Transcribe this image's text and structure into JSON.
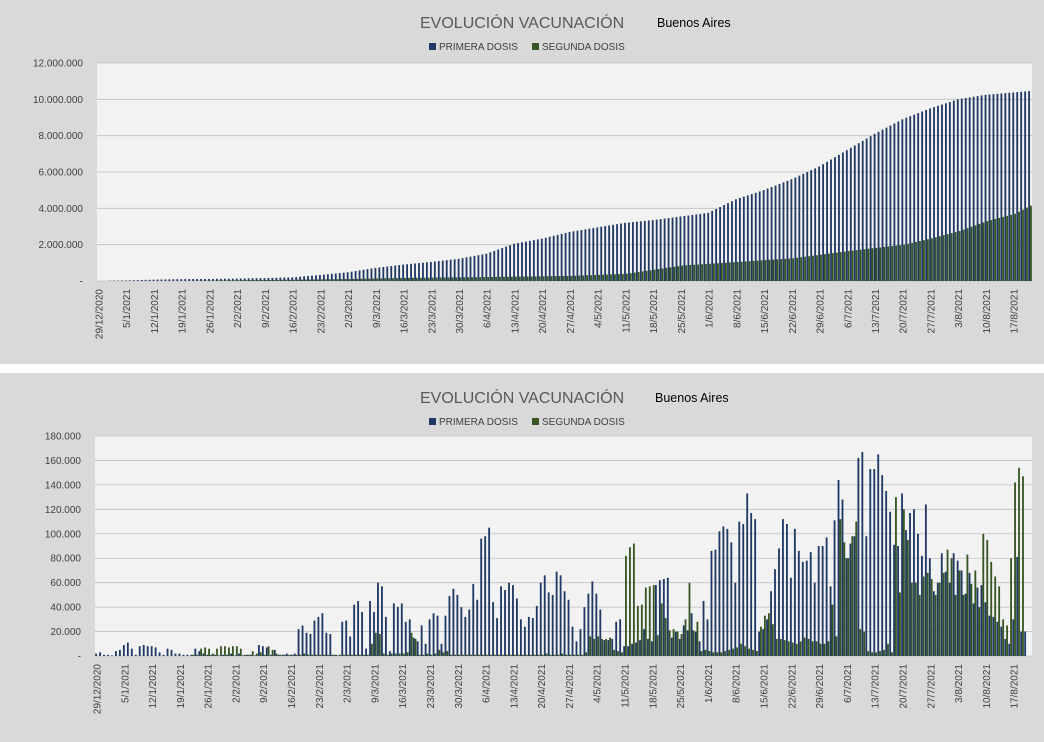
{
  "colors": {
    "primera": "#1f3864",
    "segunda": "#375623",
    "panel_bg": "#d9d9d9",
    "plot_bg": "#f2f2f2",
    "grid": "#bfbfbf"
  },
  "chart_data": [
    {
      "type": "bar",
      "title": "EVOLUCIÓN VACUNACIÓN",
      "subtitle": "Buenos Aires",
      "legend_position": "top-center",
      "grid": true,
      "ylim": [
        0,
        12000000
      ],
      "yticks": [
        0,
        2000000,
        4000000,
        6000000,
        8000000,
        10000000,
        12000000
      ],
      "ytick_labels": [
        "-",
        "2.000.000",
        "4.000.000",
        "6.000.000",
        "8.000.000",
        "10.000.000",
        "12.000.000"
      ],
      "x_start": "2020-12-29",
      "x_end": "2021-08-21",
      "xtick_labels": [
        "29/12/2020",
        "5/1/2021",
        "12/1/2021",
        "19/1/2021",
        "26/1/2021",
        "2/2/2021",
        "9/2/2021",
        "16/2/2021",
        "23/2/2021",
        "2/3/2021",
        "9/3/2021",
        "16/3/2021",
        "23/3/2021",
        "30/3/2021",
        "6/4/2021",
        "13/4/2021",
        "20/4/2021",
        "27/4/2021",
        "4/5/2021",
        "11/5/2021",
        "18/5/2021",
        "25/5/2021",
        "1/6/2021",
        "8/6/2021",
        "15/6/2021",
        "22/6/2021",
        "29/6/2021",
        "6/7/2021",
        "13/7/2021",
        "20/7/2021",
        "27/7/2021",
        "3/8/2021",
        "10/8/2021",
        "17/8/2021"
      ],
      "series": [
        {
          "name": "PRIMERA DOSIS",
          "color": "#1f3864",
          "anchors": [
            [
              "2020-12-29",
              3000
            ],
            [
              "2021-01-05",
              30000
            ],
            [
              "2021-01-12",
              75000
            ],
            [
              "2021-01-19",
              105000
            ],
            [
              "2021-01-26",
              115000
            ],
            [
              "2021-02-02",
              135000
            ],
            [
              "2021-02-09",
              160000
            ],
            [
              "2021-02-16",
              200000
            ],
            [
              "2021-02-23",
              330000
            ],
            [
              "2021-03-02",
              480000
            ],
            [
              "2021-03-09",
              720000
            ],
            [
              "2021-03-16",
              900000
            ],
            [
              "2021-03-23",
              1050000
            ],
            [
              "2021-03-30",
              1220000
            ],
            [
              "2021-04-06",
              1500000
            ],
            [
              "2021-04-13",
              2050000
            ],
            [
              "2021-04-20",
              2330000
            ],
            [
              "2021-04-27",
              2700000
            ],
            [
              "2021-05-04",
              2950000
            ],
            [
              "2021-05-11",
              3200000
            ],
            [
              "2021-05-18",
              3350000
            ],
            [
              "2021-05-25",
              3550000
            ],
            [
              "2021-06-01",
              3750000
            ],
            [
              "2021-06-08",
              4500000
            ],
            [
              "2021-06-15",
              5000000
            ],
            [
              "2021-06-22",
              5600000
            ],
            [
              "2021-06-29",
              6300000
            ],
            [
              "2021-07-06",
              7200000
            ],
            [
              "2021-07-13",
              8100000
            ],
            [
              "2021-07-20",
              8900000
            ],
            [
              "2021-07-27",
              9500000
            ],
            [
              "2021-08-03",
              10000000
            ],
            [
              "2021-08-10",
              10250000
            ],
            [
              "2021-08-17",
              10380000
            ],
            [
              "2021-08-21",
              10450000
            ]
          ]
        },
        {
          "name": "SEGUNDA DOSIS",
          "color": "#375623",
          "anchors": [
            [
              "2020-12-29",
              0
            ],
            [
              "2021-01-19",
              5000
            ],
            [
              "2021-02-02",
              40000
            ],
            [
              "2021-02-16",
              70000
            ],
            [
              "2021-03-02",
              110000
            ],
            [
              "2021-03-16",
              170000
            ],
            [
              "2021-04-06",
              220000
            ],
            [
              "2021-04-27",
              280000
            ],
            [
              "2021-05-11",
              400000
            ],
            [
              "2021-05-25",
              850000
            ],
            [
              "2021-06-08",
              1050000
            ],
            [
              "2021-06-22",
              1250000
            ],
            [
              "2021-07-06",
              1650000
            ],
            [
              "2021-07-20",
              2000000
            ],
            [
              "2021-07-27",
              2350000
            ],
            [
              "2021-08-03",
              2750000
            ],
            [
              "2021-08-10",
              3300000
            ],
            [
              "2021-08-17",
              3700000
            ],
            [
              "2021-08-21",
              4150000
            ]
          ]
        }
      ]
    },
    {
      "type": "bar",
      "title": "EVOLUCIÓN VACUNACIÓN",
      "subtitle": "Buenos Aires",
      "legend_position": "top-center",
      "grid": true,
      "ylim": [
        0,
        180000
      ],
      "yticks": [
        0,
        20000,
        40000,
        60000,
        80000,
        100000,
        120000,
        140000,
        160000,
        180000
      ],
      "ytick_labels": [
        "-",
        "20.000",
        "40.000",
        "60.000",
        "80.000",
        "100.000",
        "120.000",
        "140.000",
        "160.000",
        "180.000"
      ],
      "x_start": "2020-12-29",
      "x_end": "2021-08-21",
      "xtick_labels": [
        "29/12/2020",
        "5/1/2021",
        "12/1/2021",
        "19/1/2021",
        "26/1/2021",
        "2/2/2021",
        "9/2/2021",
        "16/2/2021",
        "23/2/2021",
        "2/3/2021",
        "9/3/2021",
        "16/3/2021",
        "23/3/2021",
        "30/3/2021",
        "6/4/2021",
        "13/4/2021",
        "20/4/2021",
        "27/4/2021",
        "4/5/2021",
        "11/5/2021",
        "18/5/2021",
        "25/5/2021",
        "1/6/2021",
        "8/6/2021",
        "15/6/2021",
        "22/6/2021",
        "29/6/2021",
        "6/7/2021",
        "13/7/2021",
        "20/7/2021",
        "27/7/2021",
        "3/8/2021",
        "10/8/2021",
        "17/8/2021"
      ],
      "series": [
        {
          "name": "PRIMERA DOSIS",
          "color": "#1f3864",
          "values": [
            2000,
            3000,
            1000,
            1000,
            500,
            4000,
            5000,
            9000,
            11000,
            6000,
            1000,
            8000,
            9000,
            8000,
            8000,
            7000,
            3000,
            1000,
            6000,
            5000,
            2000,
            2000,
            1000,
            1000,
            1000,
            6000,
            4000,
            2000,
            1000,
            1000,
            1000,
            500,
            1000,
            1000,
            2000,
            500,
            2000,
            500,
            1000,
            1000,
            500,
            9000,
            8000,
            7000,
            1000,
            5000,
            1000,
            1000,
            2000,
            1000,
            2000,
            22000,
            25000,
            19000,
            18000,
            29000,
            32000,
            35000,
            19000,
            18000,
            1000,
            500,
            28000,
            29000,
            16000,
            42000,
            45000,
            36000,
            6000,
            45000,
            36000,
            60000,
            57000,
            32000,
            4000,
            43000,
            40000,
            43000,
            28000,
            30000,
            15000,
            12000,
            25000,
            10000,
            30000,
            35000,
            33000,
            10000,
            33000,
            49000,
            55000,
            50000,
            40000,
            32000,
            38000,
            59000,
            46000,
            96000,
            98000,
            105000,
            44000,
            31000,
            57000,
            54000,
            60000,
            58000,
            47000,
            30000,
            24000,
            32000,
            31000,
            41000,
            60000,
            66000,
            52000,
            50000,
            69000,
            66000,
            53000,
            46000,
            24000,
            12000,
            22000,
            40000,
            51000,
            61000,
            51000,
            38000,
            13000,
            13000,
            14000,
            28000,
            30000,
            8000,
            8000,
            10000,
            11000,
            13000,
            22000,
            14000,
            12000,
            58000,
            62000,
            63000,
            64000,
            15000,
            20000,
            14000,
            25000,
            21000,
            35000,
            20000,
            12000,
            45000,
            30000,
            86000,
            87000,
            102000,
            106000,
            104000,
            93000,
            60000,
            110000,
            108000,
            133000,
            117000,
            112000,
            20000,
            22000,
            30000,
            53000,
            71000,
            88000,
            112000,
            108000,
            64000,
            104000,
            86000,
            77000,
            78000,
            85000,
            60000,
            90000,
            90000,
            97000,
            57000,
            111000,
            144000,
            128000,
            80000,
            92000,
            98000,
            162000,
            167000,
            98000,
            153000,
            153000,
            165000,
            148000,
            135000,
            118000,
            91000,
            90000,
            133000,
            103000,
            117000,
            120000,
            100000,
            82000,
            124000,
            80000,
            53000,
            60000,
            84000,
            69000,
            60000,
            84000,
            78000,
            70000,
            51000,
            68000,
            43000,
            56000,
            58000,
            44000,
            33000,
            32000,
            28000,
            24000,
            14000,
            10000,
            30000,
            81000,
            20000,
            20000
          ]
        },
        {
          "name": "SEGUNDA DOSIS",
          "color": "#375623",
          "values": [
            0,
            0,
            0,
            0,
            0,
            0,
            0,
            0,
            0,
            0,
            0,
            0,
            0,
            0,
            0,
            0,
            0,
            0,
            0,
            0,
            0,
            0,
            0,
            0,
            1000,
            1000,
            6000,
            7000,
            6000,
            2000,
            6000,
            8000,
            8000,
            7000,
            8000,
            8000,
            6000,
            1000,
            1000,
            4000,
            2000,
            3000,
            1000,
            8000,
            5000,
            2000,
            1000,
            1000,
            1000,
            1000,
            1000,
            1000,
            2000,
            1000,
            1000,
            1000,
            1000,
            1000,
            1000,
            1000,
            1000,
            1000,
            1000,
            1000,
            1000,
            1000,
            1000,
            1000,
            1000,
            10000,
            19000,
            18000,
            2000,
            1000,
            2000,
            2000,
            2000,
            2000,
            3000,
            19000,
            14000,
            1000,
            1000,
            2000,
            1000,
            2000,
            5000,
            3000,
            4000,
            1000,
            1000,
            1000,
            1000,
            1000,
            1000,
            1000,
            1000,
            1000,
            1000,
            1000,
            1000,
            1000,
            1000,
            1000,
            1000,
            1000,
            1000,
            1000,
            1000,
            1000,
            1000,
            1000,
            1000,
            2000,
            1000,
            1000,
            1000,
            2000,
            1000,
            1000,
            1000,
            1000,
            1000,
            3000,
            16000,
            14000,
            16000,
            14000,
            14000,
            15000,
            5000,
            4000,
            3000,
            82000,
            89000,
            92000,
            41000,
            42000,
            56000,
            57000,
            58000,
            17000,
            43000,
            31000,
            21000,
            22000,
            20000,
            18000,
            30000,
            60000,
            21000,
            28000,
            4000,
            5000,
            4000,
            3000,
            3000,
            3000,
            4000,
            5000,
            6000,
            7000,
            10000,
            8000,
            6000,
            5000,
            4000,
            24000,
            33000,
            35000,
            26000,
            14000,
            14000,
            13000,
            12000,
            11000,
            10000,
            12000,
            15000,
            14000,
            12000,
            12000,
            10000,
            10000,
            12000,
            42000,
            16000,
            112000,
            93000,
            80000,
            98000,
            110000,
            22000,
            20000,
            4000,
            3000,
            3000,
            4000,
            5000,
            10000,
            3000,
            130000,
            52000,
            120000,
            95000,
            60000,
            60000,
            50000,
            65000,
            68000,
            63000,
            50000,
            60000,
            68000,
            87000,
            80000,
            50000,
            70000,
            50000,
            83000,
            59000,
            70000,
            40000,
            100000,
            95000,
            77000,
            65000,
            57000,
            30000,
            25000,
            80000,
            142000,
            154000,
            147000
          ]
        }
      ]
    }
  ]
}
